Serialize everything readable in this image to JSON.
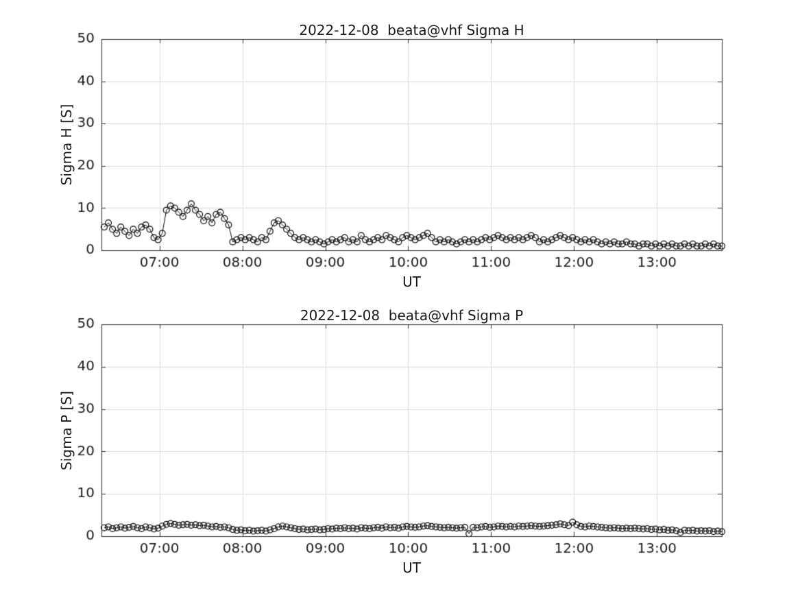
{
  "chart_data": [
    {
      "type": "scatter",
      "title": "2022-12-08  beata@vhf Sigma H",
      "xlabel": "UT",
      "ylabel": "Sigma H [S]",
      "ylim": [
        0,
        50
      ],
      "yticks": [
        0,
        10,
        20,
        30,
        40,
        50
      ],
      "xlim_minutes": [
        378,
        827
      ],
      "xtick_minutes": [
        420,
        480,
        540,
        600,
        660,
        720,
        780
      ],
      "xtick_labels": [
        "07:00",
        "08:00",
        "09:00",
        "10:00",
        "11:00",
        "12:00",
        "13:00"
      ],
      "x_start_minutes": 380,
      "x_step_minutes": 3,
      "marker": "open-circle",
      "line_color": "#000000",
      "grid_color": "#d9d9d9",
      "frame_color": "#262626",
      "values": [
        5.5,
        6.5,
        5.0,
        4.0,
        5.5,
        4.5,
        3.5,
        5.0,
        4.0,
        5.5,
        6.0,
        5.0,
        3.0,
        2.5,
        4.0,
        9.5,
        10.5,
        10.0,
        9.0,
        8.0,
        9.5,
        11.0,
        9.5,
        8.5,
        7.0,
        8.0,
        6.5,
        8.5,
        9.0,
        7.5,
        6.0,
        2.0,
        2.5,
        3.0,
        2.5,
        3.0,
        2.5,
        2.0,
        3.0,
        2.5,
        4.5,
        6.5,
        7.0,
        6.0,
        5.0,
        4.0,
        3.0,
        2.5,
        3.0,
        2.5,
        2.0,
        2.5,
        2.0,
        1.5,
        2.0,
        2.5,
        2.0,
        2.5,
        3.0,
        2.0,
        2.5,
        2.0,
        3.5,
        2.5,
        2.0,
        2.5,
        3.0,
        2.5,
        3.5,
        3.0,
        2.5,
        2.0,
        3.0,
        3.5,
        3.0,
        2.5,
        3.0,
        3.5,
        4.0,
        3.0,
        2.0,
        2.5,
        2.0,
        2.5,
        2.0,
        1.5,
        2.0,
        2.5,
        2.0,
        2.5,
        2.0,
        2.5,
        3.0,
        2.5,
        3.0,
        3.5,
        3.0,
        2.5,
        3.0,
        2.5,
        3.0,
        2.5,
        3.0,
        3.5,
        3.0,
        2.0,
        2.5,
        2.0,
        2.5,
        3.0,
        3.5,
        3.0,
        2.5,
        3.0,
        2.5,
        2.0,
        2.5,
        2.0,
        2.5,
        2.0,
        1.5,
        2.0,
        1.5,
        2.0,
        1.5,
        1.5,
        2.0,
        1.5,
        1.5,
        1.0,
        1.5,
        1.5,
        1.0,
        1.5,
        1.0,
        1.5,
        1.0,
        1.5,
        1.0,
        1.0,
        1.5,
        1.0,
        1.5,
        1.0,
        1.0,
        1.5,
        1.0,
        1.5,
        1.0,
        1.0
      ]
    },
    {
      "type": "scatter",
      "title": "2022-12-08  beata@vhf Sigma P",
      "xlabel": "UT",
      "ylabel": "Sigma P [S]",
      "ylim": [
        0,
        50
      ],
      "yticks": [
        0,
        10,
        20,
        30,
        40,
        50
      ],
      "xlim_minutes": [
        378,
        827
      ],
      "xtick_minutes": [
        420,
        480,
        540,
        600,
        660,
        720,
        780
      ],
      "xtick_labels": [
        "07:00",
        "08:00",
        "09:00",
        "10:00",
        "11:00",
        "12:00",
        "13:00"
      ],
      "x_start_minutes": 380,
      "x_step_minutes": 3,
      "marker": "open-circle",
      "line_color": "#000000",
      "grid_color": "#d9d9d9",
      "frame_color": "#262626",
      "values": [
        2.0,
        2.2,
        1.8,
        2.0,
        2.2,
        1.9,
        2.1,
        2.3,
        2.0,
        1.8,
        2.2,
        2.0,
        1.7,
        1.9,
        2.4,
        2.8,
        3.0,
        2.8,
        2.6,
        2.7,
        2.8,
        2.6,
        2.7,
        2.5,
        2.6,
        2.4,
        2.2,
        2.3,
        2.1,
        2.2,
        2.0,
        1.6,
        1.4,
        1.5,
        1.3,
        1.4,
        1.2,
        1.3,
        1.4,
        1.2,
        1.5,
        1.8,
        2.2,
        2.4,
        2.2,
        2.0,
        1.8,
        1.6,
        1.7,
        1.5,
        1.6,
        1.7,
        1.5,
        1.6,
        1.8,
        1.7,
        1.9,
        1.8,
        2.0,
        1.8,
        1.9,
        1.7,
        2.0,
        1.9,
        1.8,
        2.0,
        2.1,
        1.9,
        2.2,
        2.0,
        2.1,
        1.9,
        2.2,
        2.3,
        2.2,
        2.1,
        2.2,
        2.4,
        2.5,
        2.3,
        2.2,
        2.1,
        2.0,
        2.1,
        2.0,
        1.9,
        2.0,
        2.1,
        0.6,
        2.1,
        2.0,
        2.2,
        2.3,
        2.1,
        2.2,
        2.4,
        2.3,
        2.2,
        2.3,
        2.2,
        2.4,
        2.3,
        2.4,
        2.5,
        2.4,
        2.3,
        2.4,
        2.5,
        2.6,
        2.7,
        2.9,
        2.7,
        2.5,
        3.3,
        2.7,
        2.3,
        2.2,
        2.4,
        2.3,
        2.2,
        2.1,
        2.0,
        1.9,
        2.0,
        1.9,
        1.8,
        1.9,
        1.8,
        1.9,
        1.8,
        1.7,
        1.8,
        1.6,
        1.7,
        1.5,
        1.6,
        1.4,
        1.5,
        1.3,
        0.9,
        1.4,
        1.3,
        1.4,
        1.2,
        1.3,
        1.2,
        1.3,
        1.1,
        1.2,
        1.1
      ]
    }
  ]
}
